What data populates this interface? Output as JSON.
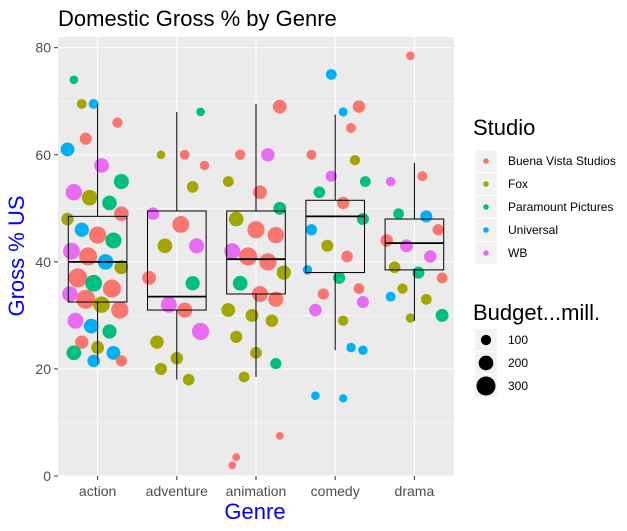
{
  "chart_data": {
    "type": "box+jitter",
    "title": "Domestic Gross % by Genre",
    "xlabel": "Genre",
    "ylabel": "Gross % US",
    "ylim": [
      0,
      82
    ],
    "yticks": [
      0,
      20,
      40,
      60,
      80
    ],
    "categories": [
      "action",
      "adventure",
      "animation",
      "comedy",
      "drama"
    ],
    "grid": true,
    "legend_placement": "right",
    "colors": {
      "panel": "#ebebeb",
      "grid_major": "#ffffff",
      "axis_title": "#0000ff",
      "box": "#000000"
    },
    "boxplots": [
      {
        "category": "action",
        "q1": 32.5,
        "median": 40,
        "q3": 48.5,
        "whisker_low": 21,
        "whisker_high": 69.5
      },
      {
        "category": "adventure",
        "q1": 31,
        "median": 33.5,
        "q3": 49.5,
        "whisker_low": 18,
        "whisker_high": 68
      },
      {
        "category": "animation",
        "q1": 34,
        "median": 40.5,
        "q3": 49.5,
        "whisker_low": 18.5,
        "whisker_high": 69.5
      },
      {
        "category": "comedy",
        "q1": 38,
        "median": 48.5,
        "q3": 51.5,
        "whisker_low": 23.5,
        "whisker_high": 67.5
      },
      {
        "category": "drama",
        "q1": 38.5,
        "median": 43.5,
        "q3": 48,
        "whisker_low": 29,
        "whisker_high": 58.5
      }
    ],
    "color_legend": {
      "title": "Studio",
      "entries": [
        {
          "name": "Buena Vista Studios",
          "color": "#f8766d"
        },
        {
          "name": "Fox",
          "color": "#a3a500"
        },
        {
          "name": "Paramount Pictures",
          "color": "#00bf7d"
        },
        {
          "name": "Universal",
          "color": "#00b0f6"
        },
        {
          "name": "WB",
          "color": "#e76bf3"
        }
      ]
    },
    "size_legend": {
      "title": "Budget...mill.",
      "entries": [
        {
          "label": "100",
          "value": 100
        },
        {
          "label": "200",
          "value": 200
        },
        {
          "label": "300",
          "value": 300
        }
      ]
    },
    "points": [
      {
        "x": "action",
        "dx": -0.3,
        "y": 74,
        "studio": "Paramount Pictures",
        "budget": 60
      },
      {
        "x": "action",
        "dx": -0.2,
        "y": 69.5,
        "studio": "Fox",
        "budget": 90
      },
      {
        "x": "action",
        "dx": -0.05,
        "y": 69.5,
        "studio": "Universal",
        "budget": 90
      },
      {
        "x": "action",
        "dx": 0.25,
        "y": 66,
        "studio": "Buena Vista Studios",
        "budget": 100
      },
      {
        "x": "action",
        "dx": -0.38,
        "y": 61,
        "studio": "Universal",
        "budget": 180
      },
      {
        "x": "action",
        "dx": -0.15,
        "y": 63,
        "studio": "Buena Vista Studios",
        "budget": 140
      },
      {
        "x": "action",
        "dx": 0.05,
        "y": 58,
        "studio": "WB",
        "budget": 200
      },
      {
        "x": "action",
        "dx": 0.3,
        "y": 55,
        "studio": "Paramount Pictures",
        "budget": 210
      },
      {
        "x": "action",
        "dx": -0.3,
        "y": 53,
        "studio": "WB",
        "budget": 240
      },
      {
        "x": "action",
        "dx": -0.1,
        "y": 52,
        "studio": "Fox",
        "budget": 220
      },
      {
        "x": "action",
        "dx": 0.15,
        "y": 51,
        "studio": "Paramount Pictures",
        "budget": 200
      },
      {
        "x": "action",
        "dx": 0.3,
        "y": 49,
        "studio": "Buena Vista Studios",
        "budget": 200
      },
      {
        "x": "action",
        "dx": -0.38,
        "y": 48,
        "studio": "Fox",
        "budget": 150
      },
      {
        "x": "action",
        "dx": -0.2,
        "y": 46,
        "studio": "Universal",
        "budget": 190
      },
      {
        "x": "action",
        "dx": 0.0,
        "y": 45,
        "studio": "Buena Vista Studios",
        "budget": 260
      },
      {
        "x": "action",
        "dx": 0.2,
        "y": 44,
        "studio": "Paramount Pictures",
        "budget": 230
      },
      {
        "x": "action",
        "dx": -0.33,
        "y": 42,
        "studio": "WB",
        "budget": 250
      },
      {
        "x": "action",
        "dx": -0.12,
        "y": 41,
        "studio": "Buena Vista Studios",
        "budget": 280
      },
      {
        "x": "action",
        "dx": 0.1,
        "y": 40,
        "studio": "Universal",
        "budget": 220
      },
      {
        "x": "action",
        "dx": 0.3,
        "y": 39,
        "studio": "Fox",
        "budget": 180
      },
      {
        "x": "action",
        "dx": -0.25,
        "y": 37,
        "studio": "Buena Vista Studios",
        "budget": 300
      },
      {
        "x": "action",
        "dx": -0.05,
        "y": 36,
        "studio": "Paramount Pictures",
        "budget": 250
      },
      {
        "x": "action",
        "dx": 0.18,
        "y": 35,
        "studio": "Buena Vista Studios",
        "budget": 280
      },
      {
        "x": "action",
        "dx": -0.35,
        "y": 34,
        "studio": "WB",
        "budget": 220
      },
      {
        "x": "action",
        "dx": -0.15,
        "y": 33,
        "studio": "Buena Vista Studios",
        "budget": 300
      },
      {
        "x": "action",
        "dx": 0.05,
        "y": 32,
        "studio": "Fox",
        "budget": 240
      },
      {
        "x": "action",
        "dx": 0.28,
        "y": 31,
        "studio": "Buena Vista Studios",
        "budget": 260
      },
      {
        "x": "action",
        "dx": -0.28,
        "y": 29,
        "studio": "WB",
        "budget": 230
      },
      {
        "x": "action",
        "dx": -0.08,
        "y": 28,
        "studio": "Universal",
        "budget": 200
      },
      {
        "x": "action",
        "dx": 0.15,
        "y": 27,
        "studio": "Paramount Pictures",
        "budget": 190
      },
      {
        "x": "action",
        "dx": -0.2,
        "y": 25,
        "studio": "Buena Vista Studios",
        "budget": 170
      },
      {
        "x": "action",
        "dx": 0.0,
        "y": 24,
        "studio": "Fox",
        "budget": 160
      },
      {
        "x": "action",
        "dx": -0.3,
        "y": 23,
        "studio": "Paramount Pictures",
        "budget": 200
      },
      {
        "x": "action",
        "dx": 0.2,
        "y": 23,
        "studio": "Universal",
        "budget": 180
      },
      {
        "x": "action",
        "dx": -0.05,
        "y": 21.5,
        "studio": "Universal",
        "budget": 150
      },
      {
        "x": "action",
        "dx": 0.3,
        "y": 21.5,
        "studio": "Buena Vista Studios",
        "budget": 120
      },
      {
        "x": "adventure",
        "dx": 0.3,
        "y": 68,
        "studio": "Paramount Pictures",
        "budget": 60
      },
      {
        "x": "adventure",
        "dx": -0.2,
        "y": 60,
        "studio": "Fox",
        "budget": 60
      },
      {
        "x": "adventure",
        "dx": 0.1,
        "y": 60,
        "studio": "Buena Vista Studios",
        "budget": 90
      },
      {
        "x": "adventure",
        "dx": 0.35,
        "y": 58,
        "studio": "Buena Vista Studios",
        "budget": 80
      },
      {
        "x": "adventure",
        "dx": 0.2,
        "y": 54,
        "studio": "Fox",
        "budget": 130
      },
      {
        "x": "adventure",
        "dx": -0.3,
        "y": 49,
        "studio": "WB",
        "budget": 150
      },
      {
        "x": "adventure",
        "dx": 0.05,
        "y": 47,
        "studio": "Buena Vista Studios",
        "budget": 250
      },
      {
        "x": "adventure",
        "dx": -0.15,
        "y": 43,
        "studio": "Fox",
        "budget": 200
      },
      {
        "x": "adventure",
        "dx": 0.25,
        "y": 43,
        "studio": "WB",
        "budget": 210
      },
      {
        "x": "adventure",
        "dx": -0.35,
        "y": 37,
        "studio": "Buena Vista Studios",
        "budget": 180
      },
      {
        "x": "adventure",
        "dx": 0.2,
        "y": 36,
        "studio": "Paramount Pictures",
        "budget": 190
      },
      {
        "x": "adventure",
        "dx": -0.1,
        "y": 32,
        "studio": "WB",
        "budget": 230
      },
      {
        "x": "adventure",
        "dx": 0.1,
        "y": 31,
        "studio": "Buena Vista Studios",
        "budget": 210
      },
      {
        "x": "adventure",
        "dx": 0.3,
        "y": 27,
        "studio": "WB",
        "budget": 260
      },
      {
        "x": "adventure",
        "dx": -0.25,
        "y": 25,
        "studio": "Fox",
        "budget": 170
      },
      {
        "x": "adventure",
        "dx": 0.0,
        "y": 22,
        "studio": "Fox",
        "budget": 150
      },
      {
        "x": "adventure",
        "dx": -0.2,
        "y": 20,
        "studio": "Fox",
        "budget": 140
      },
      {
        "x": "adventure",
        "dx": 0.15,
        "y": 18,
        "studio": "Fox",
        "budget": 130
      },
      {
        "x": "animation",
        "dx": 0.3,
        "y": 69,
        "studio": "Buena Vista Studios",
        "budget": 180
      },
      {
        "x": "animation",
        "dx": -0.2,
        "y": 60,
        "studio": "Buena Vista Studios",
        "budget": 100
      },
      {
        "x": "animation",
        "dx": 0.15,
        "y": 60,
        "studio": "WB",
        "budget": 170
      },
      {
        "x": "animation",
        "dx": -0.35,
        "y": 55,
        "studio": "Fox",
        "budget": 110
      },
      {
        "x": "animation",
        "dx": 0.05,
        "y": 53,
        "studio": "Buena Vista Studios",
        "budget": 180
      },
      {
        "x": "animation",
        "dx": 0.3,
        "y": 50,
        "studio": "Paramount Pictures",
        "budget": 160
      },
      {
        "x": "animation",
        "dx": -0.25,
        "y": 48,
        "studio": "Fox",
        "budget": 200
      },
      {
        "x": "animation",
        "dx": 0.0,
        "y": 46,
        "studio": "Buena Vista Studios",
        "budget": 260
      },
      {
        "x": "animation",
        "dx": 0.25,
        "y": 45,
        "studio": "Buena Vista Studios",
        "budget": 240
      },
      {
        "x": "animation",
        "dx": -0.3,
        "y": 42,
        "studio": "WB",
        "budget": 230
      },
      {
        "x": "animation",
        "dx": -0.1,
        "y": 41,
        "studio": "Buena Vista Studios",
        "budget": 280
      },
      {
        "x": "animation",
        "dx": 0.15,
        "y": 40,
        "studio": "Buena Vista Studios",
        "budget": 260
      },
      {
        "x": "animation",
        "dx": 0.35,
        "y": 38,
        "studio": "Fox",
        "budget": 190
      },
      {
        "x": "animation",
        "dx": -0.2,
        "y": 36,
        "studio": "Paramount Pictures",
        "budget": 200
      },
      {
        "x": "animation",
        "dx": 0.05,
        "y": 34,
        "studio": "Buena Vista Studios",
        "budget": 230
      },
      {
        "x": "animation",
        "dx": 0.25,
        "y": 33,
        "studio": "Buena Vista Studios",
        "budget": 210
      },
      {
        "x": "animation",
        "dx": -0.35,
        "y": 31,
        "studio": "Fox",
        "budget": 180
      },
      {
        "x": "animation",
        "dx": -0.05,
        "y": 30,
        "studio": "Fox",
        "budget": 160
      },
      {
        "x": "animation",
        "dx": 0.2,
        "y": 29,
        "studio": "Fox",
        "budget": 150
      },
      {
        "x": "animation",
        "dx": -0.25,
        "y": 26,
        "studio": "Fox",
        "budget": 140
      },
      {
        "x": "animation",
        "dx": 0.0,
        "y": 23,
        "studio": "Fox",
        "budget": 130
      },
      {
        "x": "animation",
        "dx": 0.25,
        "y": 21,
        "studio": "Paramount Pictures",
        "budget": 120
      },
      {
        "x": "animation",
        "dx": -0.15,
        "y": 18.5,
        "studio": "Fox",
        "budget": 110
      },
      {
        "x": "animation",
        "dx": 0.3,
        "y": 7.5,
        "studio": "Buena Vista Studios",
        "budget": 40
      },
      {
        "x": "animation",
        "dx": -0.25,
        "y": 3.5,
        "studio": "Buena Vista Studios",
        "budget": 40
      },
      {
        "x": "animation",
        "dx": -0.3,
        "y": 2,
        "studio": "Buena Vista Studios",
        "budget": 40
      },
      {
        "x": "comedy",
        "dx": -0.05,
        "y": 75,
        "studio": "Universal",
        "budget": 110
      },
      {
        "x": "comedy",
        "dx": 0.3,
        "y": 69,
        "studio": "Buena Vista Studios",
        "budget": 150
      },
      {
        "x": "comedy",
        "dx": 0.1,
        "y": 68,
        "studio": "Universal",
        "budget": 70
      },
      {
        "x": "comedy",
        "dx": 0.2,
        "y": 65,
        "studio": "Buena Vista Studios",
        "budget": 90
      },
      {
        "x": "comedy",
        "dx": -0.3,
        "y": 60,
        "studio": "Buena Vista Studios",
        "budget": 90
      },
      {
        "x": "comedy",
        "dx": 0.25,
        "y": 59,
        "studio": "Fox",
        "budget": 100
      },
      {
        "x": "comedy",
        "dx": -0.05,
        "y": 56,
        "studio": "WB",
        "budget": 120
      },
      {
        "x": "comedy",
        "dx": 0.38,
        "y": 55,
        "studio": "Paramount Pictures",
        "budget": 110
      },
      {
        "x": "comedy",
        "dx": -0.2,
        "y": 53,
        "studio": "Paramount Pictures",
        "budget": 130
      },
      {
        "x": "comedy",
        "dx": 0.1,
        "y": 51,
        "studio": "Buena Vista Studios",
        "budget": 150
      },
      {
        "x": "comedy",
        "dx": 0.35,
        "y": 48,
        "studio": "Paramount Pictures",
        "budget": 140
      },
      {
        "x": "comedy",
        "dx": -0.3,
        "y": 46,
        "studio": "Universal",
        "budget": 120
      },
      {
        "x": "comedy",
        "dx": -0.1,
        "y": 43,
        "studio": "Fox",
        "budget": 140
      },
      {
        "x": "comedy",
        "dx": 0.15,
        "y": 41,
        "studio": "Buena Vista Studios",
        "budget": 130
      },
      {
        "x": "comedy",
        "dx": -0.35,
        "y": 38.5,
        "studio": "Universal",
        "budget": 80
      },
      {
        "x": "comedy",
        "dx": 0.05,
        "y": 37,
        "studio": "Paramount Pictures",
        "budget": 140
      },
      {
        "x": "comedy",
        "dx": 0.3,
        "y": 35,
        "studio": "Buena Vista Studios",
        "budget": 110
      },
      {
        "x": "comedy",
        "dx": -0.15,
        "y": 34,
        "studio": "Buena Vista Studios",
        "budget": 120
      },
      {
        "x": "comedy",
        "dx": 0.35,
        "y": 32.5,
        "studio": "WB",
        "budget": 140
      },
      {
        "x": "comedy",
        "dx": -0.25,
        "y": 31,
        "studio": "WB",
        "budget": 150
      },
      {
        "x": "comedy",
        "dx": 0.1,
        "y": 29,
        "studio": "Fox",
        "budget": 100
      },
      {
        "x": "comedy",
        "dx": 0.2,
        "y": 24,
        "studio": "Universal",
        "budget": 80
      },
      {
        "x": "comedy",
        "dx": 0.35,
        "y": 23.5,
        "studio": "Universal",
        "budget": 80
      },
      {
        "x": "comedy",
        "dx": -0.25,
        "y": 15,
        "studio": "Universal",
        "budget": 60
      },
      {
        "x": "comedy",
        "dx": 0.1,
        "y": 14.5,
        "studio": "Universal",
        "budget": 50
      },
      {
        "x": "drama",
        "dx": -0.05,
        "y": 78.5,
        "studio": "Buena Vista Studios",
        "budget": 60
      },
      {
        "x": "drama",
        "dx": 0.1,
        "y": 56,
        "studio": "Buena Vista Studios",
        "budget": 90
      },
      {
        "x": "drama",
        "dx": -0.3,
        "y": 55,
        "studio": "WB",
        "budget": 80
      },
      {
        "x": "drama",
        "dx": -0.2,
        "y": 49,
        "studio": "Paramount Pictures",
        "budget": 110
      },
      {
        "x": "drama",
        "dx": 0.15,
        "y": 48.5,
        "studio": "Universal",
        "budget": 140
      },
      {
        "x": "drama",
        "dx": 0.3,
        "y": 46,
        "studio": "Buena Vista Studios",
        "budget": 120
      },
      {
        "x": "drama",
        "dx": -0.35,
        "y": 44,
        "studio": "Buena Vista Studios",
        "budget": 150
      },
      {
        "x": "drama",
        "dx": -0.1,
        "y": 43,
        "studio": "WB",
        "budget": 160
      },
      {
        "x": "drama",
        "dx": 0.2,
        "y": 41,
        "studio": "WB",
        "budget": 150
      },
      {
        "x": "drama",
        "dx": -0.25,
        "y": 39,
        "studio": "Fox",
        "budget": 130
      },
      {
        "x": "drama",
        "dx": 0.05,
        "y": 38,
        "studio": "Paramount Pictures",
        "budget": 140
      },
      {
        "x": "drama",
        "dx": 0.35,
        "y": 37,
        "studio": "Buena Vista Studios",
        "budget": 110
      },
      {
        "x": "drama",
        "dx": -0.15,
        "y": 35,
        "studio": "Fox",
        "budget": 100
      },
      {
        "x": "drama",
        "dx": -0.3,
        "y": 33.5,
        "studio": "Universal",
        "budget": 90
      },
      {
        "x": "drama",
        "dx": 0.15,
        "y": 33,
        "studio": "Fox",
        "budget": 110
      },
      {
        "x": "drama",
        "dx": 0.35,
        "y": 30,
        "studio": "Paramount Pictures",
        "budget": 160
      },
      {
        "x": "drama",
        "dx": -0.05,
        "y": 29.5,
        "studio": "Fox",
        "budget": 80
      }
    ]
  }
}
